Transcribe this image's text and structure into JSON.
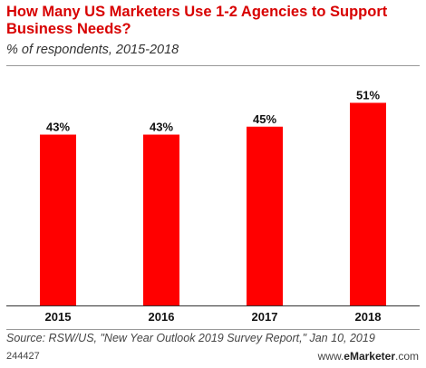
{
  "header": {
    "title": "How Many US Marketers Use 1-2 Agencies to Support Business Needs?",
    "subtitle": "% of respondents, 2015-2018"
  },
  "chart_data": {
    "type": "bar",
    "categories": [
      "2015",
      "2016",
      "2017",
      "2018"
    ],
    "values": [
      43,
      43,
      45,
      51
    ],
    "value_labels": [
      "43%",
      "43%",
      "45%",
      "51%"
    ],
    "ylim": [
      0,
      60
    ],
    "grid": false,
    "bar_color": "#ff0000"
  },
  "footer": {
    "source": "Source: RSW/US, \"New Year Outlook 2019 Survey Report,\" Jan 10, 2019",
    "id": "244427",
    "brand_prefix": "www.",
    "brand_name": "eMarketer",
    "brand_suffix": ".com"
  }
}
